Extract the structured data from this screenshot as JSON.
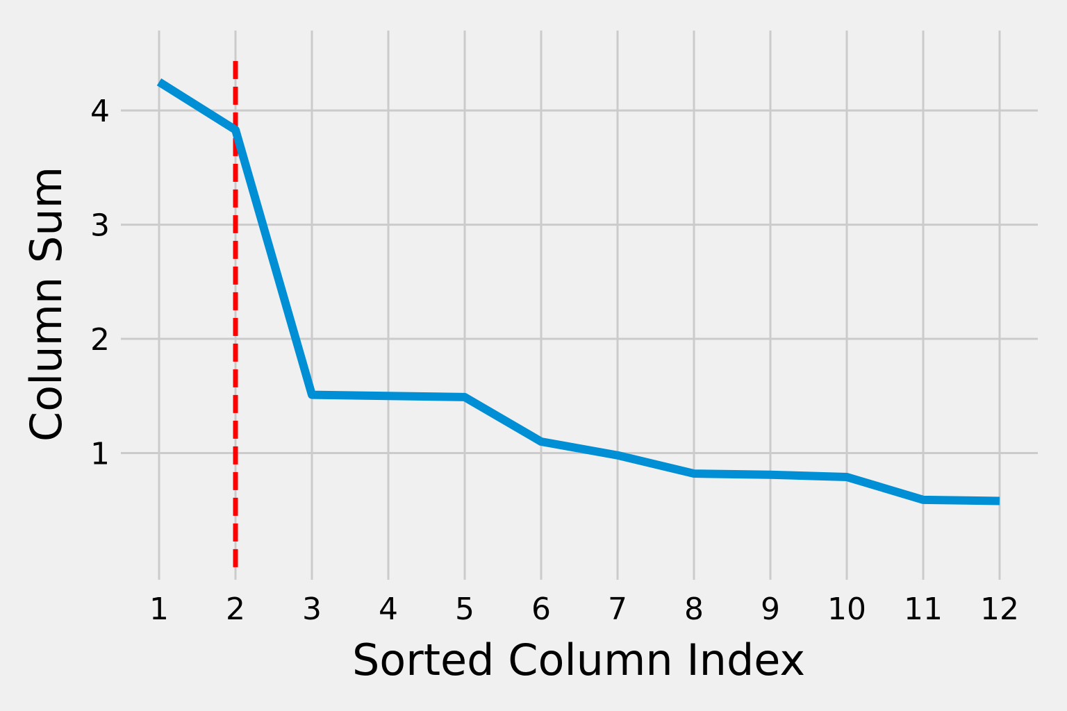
{
  "chart_data": {
    "type": "line",
    "title": "",
    "xlabel": "Sorted Column Index",
    "ylabel": "Column Sum",
    "x": [
      1,
      2,
      3,
      4,
      5,
      6,
      7,
      8,
      9,
      10,
      11,
      12
    ],
    "x_tick_labels": [
      "1",
      "2",
      "3",
      "4",
      "5",
      "6",
      "7",
      "8",
      "9",
      "10",
      "11",
      "12"
    ],
    "y_ticks": [
      1,
      2,
      3,
      4
    ],
    "y_tick_labels": [
      "1",
      "2",
      "3",
      "4"
    ],
    "xlim": [
      0.5,
      12.5
    ],
    "ylim": [
      -0.11,
      4.7
    ],
    "grid": true,
    "series": [
      {
        "values": [
          4.25,
          3.83,
          1.51,
          1.5,
          1.49,
          1.1,
          0.98,
          0.82,
          0.81,
          0.79,
          0.59,
          0.58
        ],
        "color": "#008fd5"
      }
    ],
    "reference_line": {
      "orientation": "vertical",
      "x": 2,
      "y_range": [
        0,
        4.5
      ],
      "style": "dashed",
      "color": "#ff0000"
    },
    "colors": {
      "background": "#f0f0f0",
      "grid": "#cbcbcb"
    }
  }
}
